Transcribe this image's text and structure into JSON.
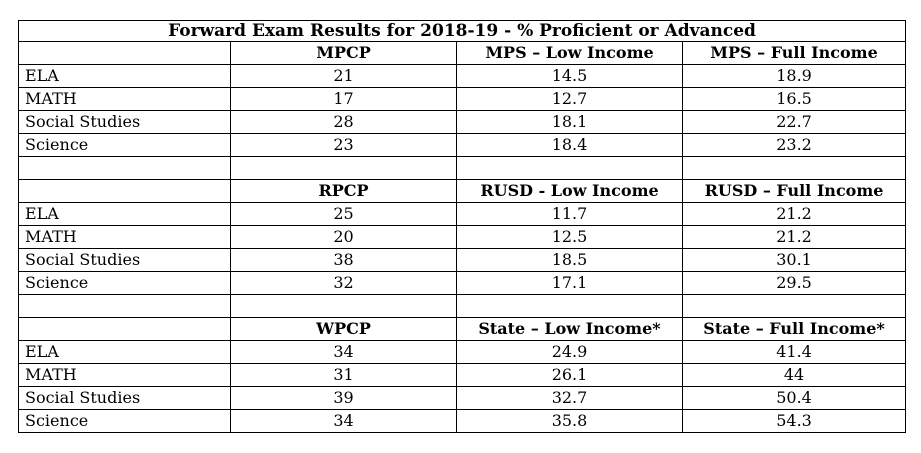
{
  "title": "Forward Exam Results for 2018-19 - % Proficient or Advanced",
  "sections": [
    {
      "headers": [
        "MPCP",
        "MPS – Low Income",
        "MPS – Full Income"
      ],
      "rows": [
        {
          "label": "ELA",
          "values": [
            "21",
            "14.5",
            "18.9"
          ]
        },
        {
          "label": "MATH",
          "values": [
            "17",
            "12.7",
            "16.5"
          ]
        },
        {
          "label": "Social Studies",
          "values": [
            "28",
            "18.1",
            "22.7"
          ]
        },
        {
          "label": "Science",
          "values": [
            "23",
            "18.4",
            "23.2"
          ]
        }
      ]
    },
    {
      "headers": [
        "RPCP",
        "RUSD - Low Income",
        "RUSD – Full Income"
      ],
      "rows": [
        {
          "label": "ELA",
          "values": [
            "25",
            "11.7",
            "21.2"
          ]
        },
        {
          "label": "MATH",
          "values": [
            "20",
            "12.5",
            "21.2"
          ]
        },
        {
          "label": "Social Studies",
          "values": [
            "38",
            "18.5",
            "30.1"
          ]
        },
        {
          "label": "Science",
          "values": [
            "32",
            "17.1",
            "29.5"
          ]
        }
      ]
    },
    {
      "headers": [
        "WPCP",
        "State – Low Income*",
        "State – Full Income*"
      ],
      "rows": [
        {
          "label": "ELA",
          "values": [
            "34",
            "24.9",
            "41.4"
          ]
        },
        {
          "label": "MATH",
          "values": [
            "31",
            "26.1",
            "44"
          ]
        },
        {
          "label": "Social Studies",
          "values": [
            "39",
            "32.7",
            "50.4"
          ]
        },
        {
          "label": "Science",
          "values": [
            "34",
            "35.8",
            "54.3"
          ]
        }
      ]
    }
  ]
}
